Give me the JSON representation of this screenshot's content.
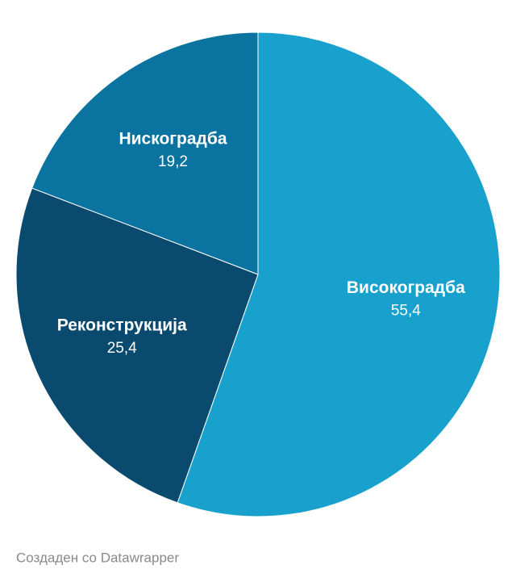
{
  "chart_data": {
    "type": "pie",
    "categories": [
      "Високоградба",
      "Реконструкција",
      "Нискоградба"
    ],
    "values": [
      55.4,
      25.4,
      19.2
    ],
    "value_labels": [
      "55,4",
      "25,4",
      "19,2"
    ],
    "colors": [
      "#18a1cd",
      "#0b4a6f",
      "#0a73a0"
    ]
  },
  "footer": "Создаден со Datawrapper"
}
